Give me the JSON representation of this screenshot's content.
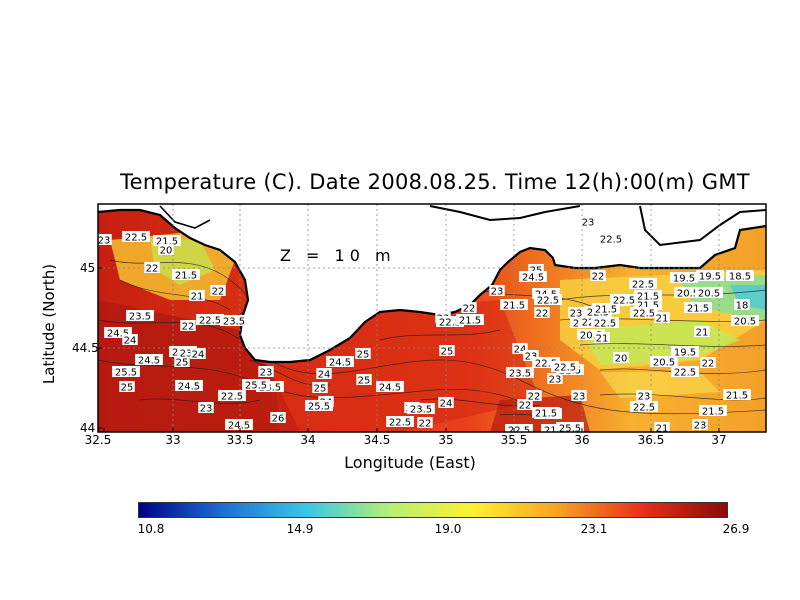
{
  "title": "Temperature (C). Date 2008.08.25. Time 12(h):00(m) GMT",
  "depth_label": "Z = 10 m",
  "xlabel": "Longitude (East)",
  "ylabel": "Latitude (North)",
  "x_ticks": [
    "32.5",
    "33",
    "33.5",
    "34",
    "34.5",
    "35",
    "35.5",
    "36",
    "36.5",
    "37"
  ],
  "y_ticks": [
    "45",
    "44.5",
    "44"
  ],
  "colorbar": {
    "ticks": [
      "10.8",
      "14.9",
      "19.0",
      "23.1",
      "26.9"
    ],
    "colors": [
      "#00008b",
      "#1e6fd6",
      "#38c8e8",
      "#b8f070",
      "#fff030",
      "#f8a020",
      "#e83018",
      "#8b0a0a"
    ]
  },
  "contour_labels": [
    {
      "t": "23"
    },
    {
      "t": "22.5"
    },
    {
      "t": "21.5"
    },
    {
      "t": "20"
    },
    {
      "t": "22"
    },
    {
      "t": "21.5"
    },
    {
      "t": "21"
    },
    {
      "t": "22"
    },
    {
      "t": "23.5"
    },
    {
      "t": "22"
    },
    {
      "t": "22.5"
    },
    {
      "t": "23.5"
    },
    {
      "t": "24.5"
    },
    {
      "t": "24"
    },
    {
      "t": "22.5"
    },
    {
      "t": "24.5"
    },
    {
      "t": "25"
    },
    {
      "t": "23"
    },
    {
      "t": "24"
    },
    {
      "t": "25.5"
    },
    {
      "t": "25"
    },
    {
      "t": "24.5"
    },
    {
      "t": "23"
    },
    {
      "t": "22.5"
    },
    {
      "t": "23"
    },
    {
      "t": "23.5"
    },
    {
      "t": "25.5"
    },
    {
      "t": "24"
    },
    {
      "t": "26"
    },
    {
      "t": "24.5"
    },
    {
      "t": "24"
    },
    {
      "t": "25"
    },
    {
      "t": "25"
    },
    {
      "t": "25.5"
    },
    {
      "t": "23"
    },
    {
      "t": "24.5"
    },
    {
      "t": "25"
    },
    {
      "t": "24.5"
    },
    {
      "t": "25"
    },
    {
      "t": "23.5"
    },
    {
      "t": "24"
    },
    {
      "t": "22.5"
    },
    {
      "t": "22"
    },
    {
      "t": "23"
    },
    {
      "t": "22.5"
    },
    {
      "t": "22"
    },
    {
      "t": "21.5"
    },
    {
      "t": "25"
    },
    {
      "t": "24.5"
    },
    {
      "t": "23"
    },
    {
      "t": "21.5"
    },
    {
      "t": "24.5"
    },
    {
      "t": "22.5"
    },
    {
      "t": "22"
    },
    {
      "t": "23"
    },
    {
      "t": "24"
    },
    {
      "t": "23"
    },
    {
      "t": "22.5"
    },
    {
      "t": "23.5"
    },
    {
      "t": "22"
    },
    {
      "t": "21.5"
    },
    {
      "t": "22"
    },
    {
      "t": "23"
    },
    {
      "t": "22.5"
    },
    {
      "t": "21.5"
    },
    {
      "t": "20.5"
    },
    {
      "t": "21"
    },
    {
      "t": "22"
    },
    {
      "t": "22.5"
    },
    {
      "t": "21.5"
    },
    {
      "t": "22.5"
    },
    {
      "t": "21"
    },
    {
      "t": "20"
    },
    {
      "t": "20.5"
    },
    {
      "t": "19.5"
    },
    {
      "t": "22"
    },
    {
      "t": "22.5"
    },
    {
      "t": "21"
    },
    {
      "t": "23"
    },
    {
      "t": "22.5"
    },
    {
      "t": "21.5"
    },
    {
      "t": "21.5"
    },
    {
      "t": "19.5"
    },
    {
      "t": "20.5"
    },
    {
      "t": "18.5"
    },
    {
      "t": "20.5"
    },
    {
      "t": "19.5"
    },
    {
      "t": "18"
    },
    {
      "t": "20.5"
    },
    {
      "t": "21.5"
    },
    {
      "t": "22"
    },
    {
      "t": "21.5"
    },
    {
      "t": "22.5"
    },
    {
      "t": "21.5"
    },
    {
      "t": "22.5"
    },
    {
      "t": "22"
    },
    {
      "t": "22.5"
    },
    {
      "t": "23"
    },
    {
      "t": "22"
    },
    {
      "t": "21.5"
    },
    {
      "t": "22.5"
    },
    {
      "t": "21"
    },
    {
      "t": "23"
    },
    {
      "t": "22.5"
    },
    {
      "t": "21.5"
    },
    {
      "t": "25.5"
    },
    {
      "t": "23"
    },
    {
      "t": "22.5"
    }
  ]
}
